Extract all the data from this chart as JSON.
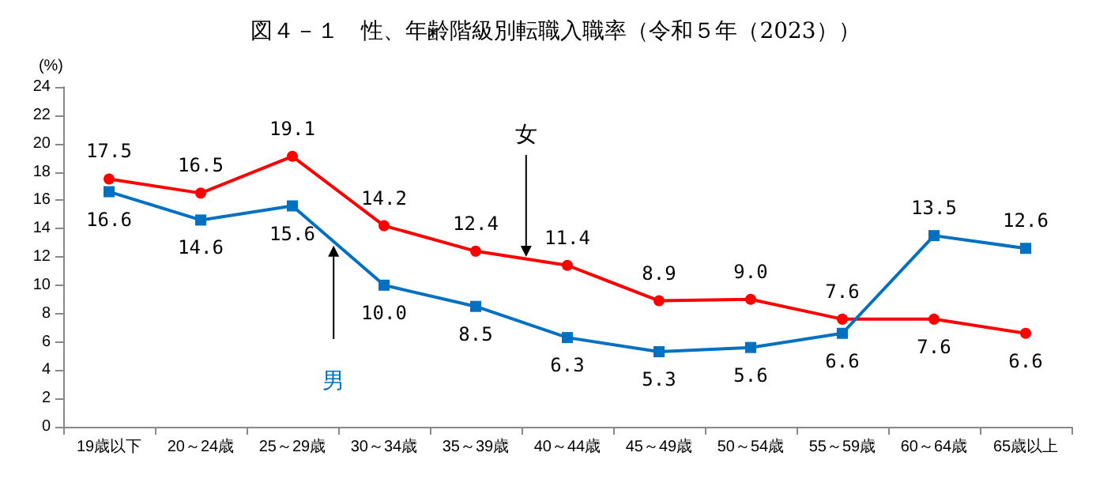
{
  "chart_data": {
    "type": "line",
    "title": "図４－１　性、年齢階級別転職入職率（令和５年（2023））",
    "ylabel": "(%)",
    "categories": [
      "19歳以下",
      "20～24歳",
      "25～29歳",
      "30～34歳",
      "35～39歳",
      "40～44歳",
      "45～49歳",
      "50～54歳",
      "55～59歳",
      "60～64歳",
      "65歳以上"
    ],
    "series": [
      {
        "name": "女",
        "color": "#ff0000",
        "marker": "circle",
        "values": [
          17.5,
          16.5,
          19.1,
          14.2,
          12.4,
          11.4,
          8.9,
          9.0,
          7.6,
          7.6,
          6.6
        ],
        "value_labels": [
          "17.5",
          "16.5",
          "19.1",
          "14.2",
          "12.4",
          "11.4",
          "8.9",
          "9.0",
          "7.6",
          "7.6",
          "6.6"
        ]
      },
      {
        "name": "男",
        "color": "#0070c0",
        "marker": "square",
        "values": [
          16.6,
          14.6,
          15.6,
          10.0,
          8.5,
          6.3,
          5.3,
          5.6,
          6.6,
          13.5,
          12.6
        ],
        "value_labels": [
          "16.6",
          "14.6",
          "15.6",
          "10.0",
          "8.5",
          "6.3",
          "5.3",
          "5.6",
          "6.6",
          "13.5",
          "12.6"
        ]
      }
    ],
    "ylim": [
      0,
      24
    ],
    "yticks": [
      0,
      2,
      4,
      6,
      8,
      10,
      12,
      14,
      16,
      18,
      20,
      22,
      24
    ],
    "grid": false,
    "legend": false
  }
}
